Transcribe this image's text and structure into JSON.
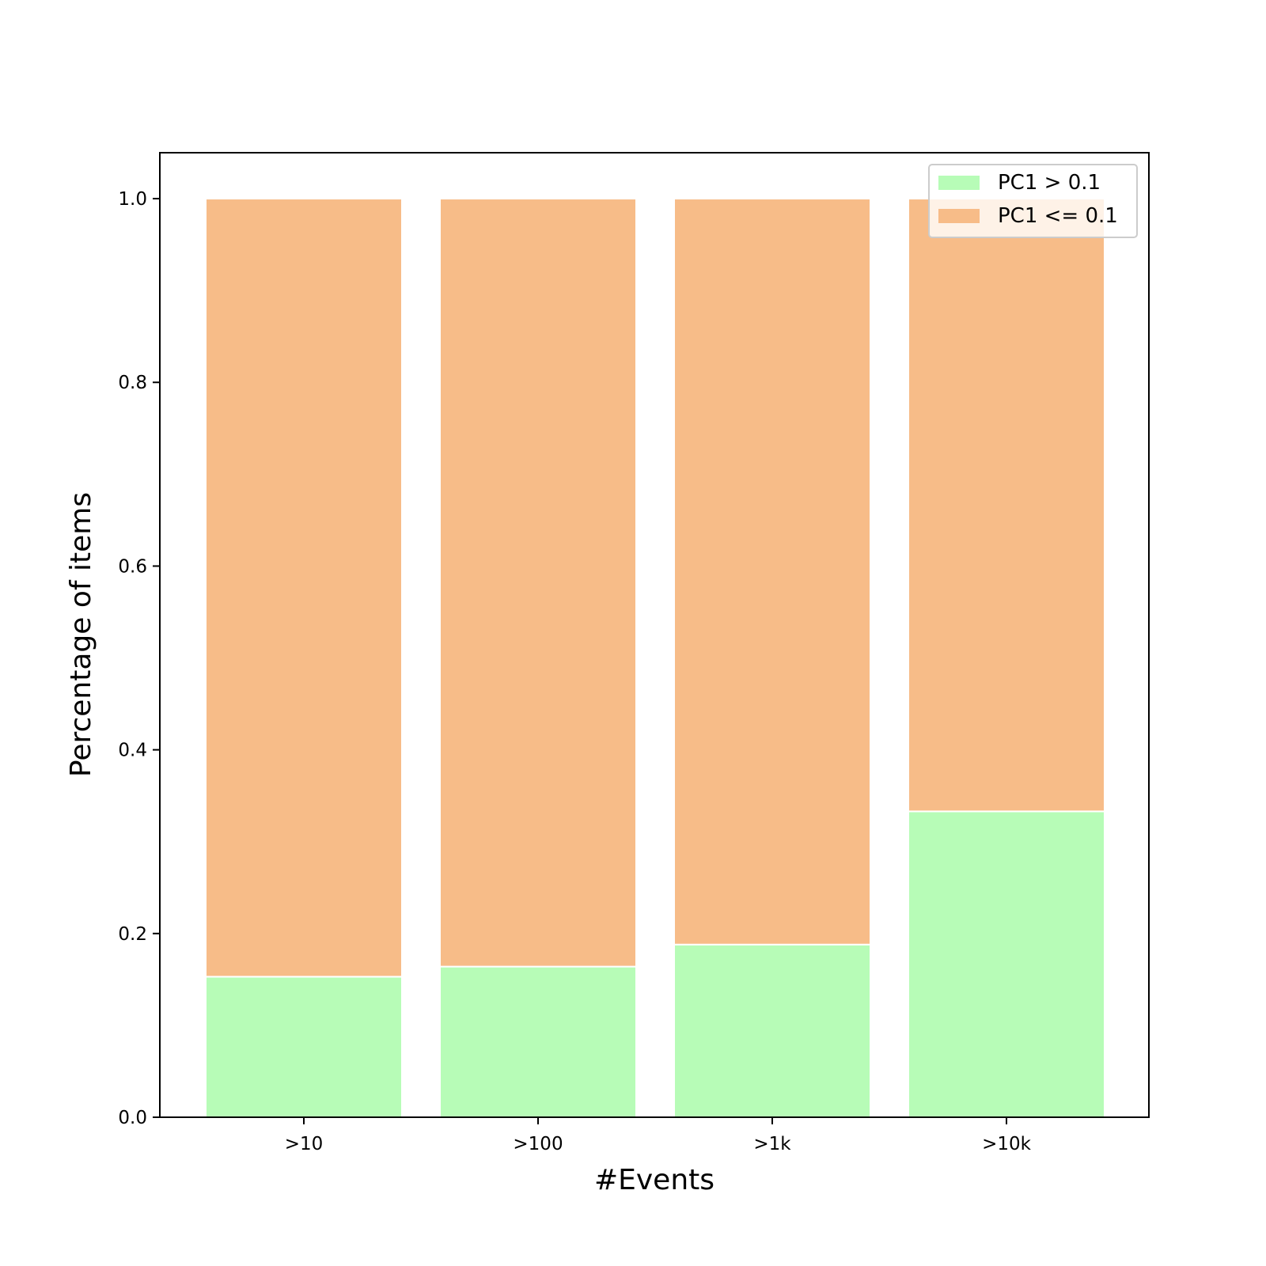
{
  "chart_data": {
    "type": "bar",
    "stacked": true,
    "categories": [
      ">10",
      ">100",
      ">1k",
      ">10k"
    ],
    "series": [
      {
        "name": "PC1 > 0.1",
        "color": "#b7fcb7",
        "values": [
          0.153,
          0.164,
          0.188,
          0.333
        ]
      },
      {
        "name": "PC1 <= 0.1",
        "color": "#f7bc88",
        "values": [
          0.847,
          0.836,
          0.812,
          0.667
        ]
      }
    ],
    "title": "",
    "xlabel": "#Events",
    "ylabel": "Percentage of items",
    "ylim": [
      0,
      1.05
    ],
    "yticks": [
      "0.0",
      "0.2",
      "0.4",
      "0.6",
      "0.8",
      "1.0"
    ],
    "grid": false,
    "legend_position": "top-right"
  }
}
